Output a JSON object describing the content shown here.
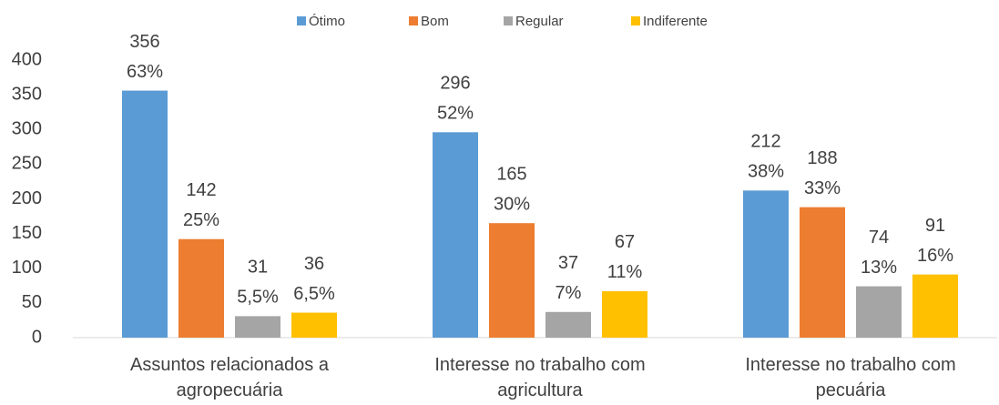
{
  "chart_data": {
    "type": "bar",
    "categories": [
      [
        "Assuntos relacionados a",
        "agropecuária"
      ],
      [
        "Interesse no trabalho com",
        "agricultura"
      ],
      [
        "Interesse no trabalho com",
        "pecuária"
      ]
    ],
    "series": [
      {
        "name": "Ótimo",
        "color": "#5b9bd5",
        "values": [
          356,
          296,
          212
        ],
        "percent_labels": [
          "63%",
          "52%",
          "38%"
        ]
      },
      {
        "name": "Bom",
        "color": "#ed7d31",
        "values": [
          142,
          165,
          188
        ],
        "percent_labels": [
          "25%",
          "30%",
          "33%"
        ]
      },
      {
        "name": "Regular",
        "color": "#a5a5a5",
        "values": [
          31,
          37,
          74
        ],
        "percent_labels": [
          "5,5%",
          "7%",
          "13%"
        ]
      },
      {
        "name": "Indiferente",
        "color": "#ffc000",
        "values": [
          36,
          67,
          91
        ],
        "percent_labels": [
          "6,5%",
          "11%",
          "16%"
        ]
      }
    ],
    "ylim": [
      0,
      400
    ],
    "yticks": [
      0,
      50,
      100,
      150,
      200,
      250,
      300,
      350,
      400
    ],
    "grid": false,
    "legend": "top"
  }
}
